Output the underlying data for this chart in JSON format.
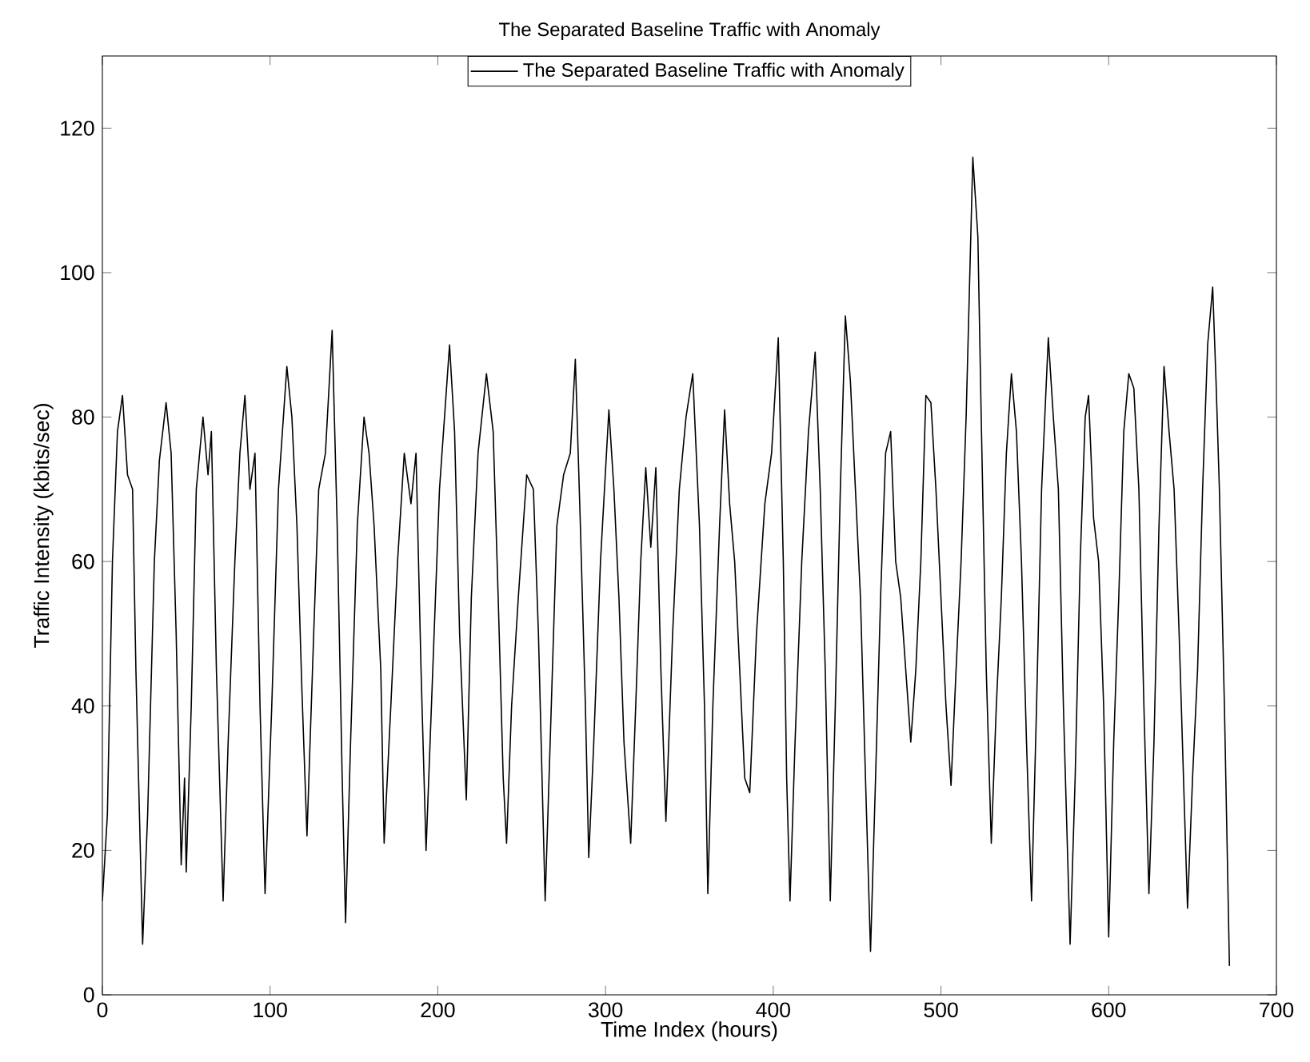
{
  "chart_data": {
    "type": "line",
    "title": "The Separated Baseline Traffic with Anomaly",
    "xlabel": "Time Index (hours)",
    "ylabel": "Traffic Intensity (kbits/sec)",
    "xlim": [
      0,
      700
    ],
    "ylim": [
      0,
      130
    ],
    "xticks": [
      0,
      100,
      200,
      300,
      400,
      500,
      600,
      700
    ],
    "yticks": [
      0,
      20,
      40,
      60,
      80,
      100,
      120
    ],
    "legend": "top",
    "grid": false,
    "marker": "none",
    "line_style": "solid",
    "series": [
      {
        "name": "The Separated Baseline Traffic with Anomaly",
        "color": "#000000",
        "x": [
          0,
          3,
          6,
          9,
          12,
          15,
          18,
          20,
          24,
          27,
          31,
          34,
          38,
          41,
          44,
          47,
          49,
          50,
          53,
          56,
          60,
          63,
          65,
          68,
          72,
          75,
          79,
          82,
          85,
          88,
          91,
          94,
          97,
          101,
          105,
          110,
          113,
          116,
          119,
          122,
          126,
          129,
          133,
          137,
          140,
          143,
          145,
          148,
          152,
          156,
          159,
          162,
          166,
          168,
          172,
          176,
          180,
          184,
          187,
          190,
          193,
          197,
          201,
          207,
          210,
          213,
          217,
          220,
          224,
          229,
          233,
          236,
          239,
          241,
          244,
          248,
          253,
          257,
          260,
          264,
          267,
          271,
          275,
          279,
          282,
          285,
          288,
          290,
          293,
          297,
          302,
          305,
          308,
          311,
          315,
          318,
          321,
          324,
          327,
          330,
          333,
          336,
          340,
          344,
          348,
          352,
          356,
          359,
          361,
          364,
          368,
          371,
          374,
          377,
          380,
          383,
          386,
          390,
          395,
          399,
          403,
          406,
          408,
          410,
          413,
          417,
          421,
          425,
          428,
          431,
          434,
          437,
          440,
          443,
          446,
          449,
          452,
          455,
          458,
          461,
          464,
          467,
          470,
          473,
          476,
          479,
          482,
          485,
          488,
          491,
          494,
          497,
          500,
          503,
          506,
          509,
          512,
          515,
          519,
          522,
          524,
          527,
          530,
          533,
          536,
          539,
          542,
          545,
          548,
          551,
          554,
          557,
          560,
          564,
          567,
          570,
          573,
          577,
          580,
          583,
          586,
          588,
          591,
          594,
          597,
          600,
          603,
          606,
          609,
          612,
          615,
          618,
          621,
          624,
          627,
          630,
          633,
          636,
          639,
          642,
          645,
          647,
          650,
          653,
          656,
          659,
          662,
          664,
          666,
          669,
          672
        ],
        "values": [
          13,
          25,
          60,
          78,
          83,
          72,
          70,
          45,
          7,
          25,
          60,
          74,
          82,
          75,
          50,
          18,
          30,
          17,
          40,
          70,
          80,
          72,
          78,
          45,
          13,
          35,
          60,
          75,
          83,
          70,
          75,
          40,
          14,
          40,
          70,
          87,
          80,
          65,
          42,
          22,
          50,
          70,
          75,
          92,
          65,
          30,
          10,
          35,
          65,
          80,
          75,
          65,
          45,
          21,
          40,
          60,
          75,
          68,
          75,
          45,
          20,
          45,
          70,
          90,
          78,
          50,
          27,
          55,
          75,
          86,
          78,
          55,
          30,
          21,
          40,
          55,
          72,
          70,
          50,
          13,
          35,
          65,
          72,
          75,
          88,
          65,
          40,
          19,
          35,
          60,
          81,
          70,
          55,
          35,
          21,
          40,
          60,
          73,
          62,
          73,
          45,
          24,
          50,
          70,
          80,
          86,
          65,
          40,
          14,
          40,
          65,
          81,
          68,
          60,
          45,
          30,
          28,
          50,
          68,
          75,
          91,
          60,
          30,
          13,
          35,
          60,
          78,
          89,
          70,
          45,
          13,
          40,
          70,
          94,
          85,
          70,
          55,
          30,
          6,
          30,
          55,
          75,
          78,
          60,
          55,
          45,
          35,
          45,
          60,
          83,
          82,
          70,
          55,
          40,
          29,
          45,
          60,
          80,
          116,
          105,
          80,
          45,
          21,
          40,
          55,
          75,
          86,
          78,
          60,
          35,
          13,
          40,
          70,
          91,
          80,
          70,
          40,
          7,
          30,
          60,
          80,
          83,
          66,
          60,
          40,
          8,
          35,
          55,
          78,
          86,
          84,
          70,
          40,
          14,
          35,
          65,
          87,
          78,
          70,
          50,
          27,
          12,
          30,
          45,
          70,
          90,
          98,
          85,
          70,
          40,
          4
        ]
      }
    ]
  }
}
